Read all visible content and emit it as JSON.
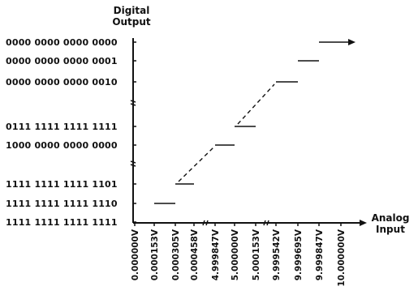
{
  "chart_data": {
    "type": "line",
    "ylabel": "Digital\nOutput",
    "xlabel": "Analog\nInput",
    "y_codes": [
      "0000 0000 0000 0000",
      "0000 0000 0000 0001",
      "0000 0000 0000 0010",
      "0111 1111 1111 1111",
      "1000 0000 0000 0000",
      "1111 1111 1111 1101",
      "1111 1111 1111 1110",
      "1111 1111 1111 1111"
    ],
    "x_ticks": [
      "0.000000V",
      "0.000153V",
      "0.000305V",
      "0.000458V",
      "4.999847V",
      "5.000000V",
      "5.000153V",
      "9.999542V",
      "9.999695V",
      "9.999847V",
      "10.000000V"
    ],
    "steps": [
      {
        "x_from": "0.000153V",
        "x_to": "0.000305V",
        "code": "1111 1111 1111 1110"
      },
      {
        "x_from": "0.000305V",
        "x_to": "0.000458V",
        "code": "1111 1111 1111 1101"
      },
      {
        "x_from": "4.999847V",
        "x_to": "5.000000V",
        "code": "1000 0000 0000 0000"
      },
      {
        "x_from": "5.000000V",
        "x_to": "5.000153V",
        "code": "0111 1111 1111 1111"
      },
      {
        "x_from": "9.999542V",
        "x_to": "9.999695V",
        "code": "0000 0000 0000 0010"
      },
      {
        "x_from": "9.999695V",
        "x_to": "9.999847V",
        "code": "0000 0000 0000 0001"
      },
      {
        "x_from": "9.999847V",
        "x_to": "10.000000V",
        "code": "0000 0000 0000 0000"
      }
    ],
    "axis_breaks": true,
    "grid": false
  }
}
